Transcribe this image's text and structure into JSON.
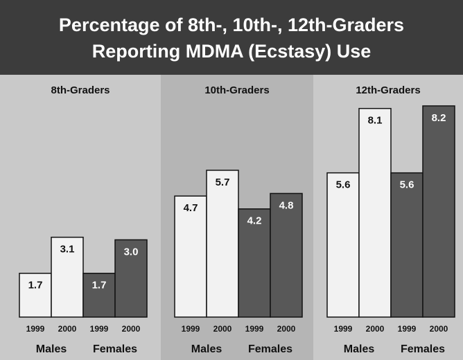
{
  "title": [
    "Percentage of 8th-, 10th-, 12th-Graders",
    "Reporting MDMA (Ecstasy) Use"
  ],
  "chart_data": [
    {
      "type": "bar",
      "title": "8th-Graders",
      "categories": [
        "1999",
        "2000",
        "1999",
        "2000"
      ],
      "groups": [
        "Males",
        "Females"
      ],
      "values": [
        1.7,
        3.1,
        1.7,
        3.0
      ],
      "value_labels": [
        "1.7",
        "3.1",
        "1.7",
        "3.0"
      ],
      "colors": [
        "#f2f2f2",
        "#f2f2f2",
        "#585858",
        "#585858"
      ],
      "ylim": [
        0,
        10
      ]
    },
    {
      "type": "bar",
      "title": "10th-Graders",
      "categories": [
        "1999",
        "2000",
        "1999",
        "2000"
      ],
      "groups": [
        "Males",
        "Females"
      ],
      "values": [
        4.7,
        5.7,
        4.2,
        4.8
      ],
      "value_labels": [
        "4.7",
        "5.7",
        "4.2",
        "4.8"
      ],
      "colors": [
        "#f2f2f2",
        "#f2f2f2",
        "#585858",
        "#585858"
      ],
      "ylim": [
        0,
        10
      ]
    },
    {
      "type": "bar",
      "title": "12th-Graders",
      "categories": [
        "1999",
        "2000",
        "1999",
        "2000"
      ],
      "groups": [
        "Males",
        "Females"
      ],
      "values": [
        5.6,
        8.1,
        5.6,
        8.2
      ],
      "value_labels": [
        "5.6",
        "8.1",
        "5.6",
        "8.2"
      ],
      "colors": [
        "#f2f2f2",
        "#f2f2f2",
        "#585858",
        "#585858"
      ],
      "ylim": [
        0,
        10
      ]
    }
  ]
}
